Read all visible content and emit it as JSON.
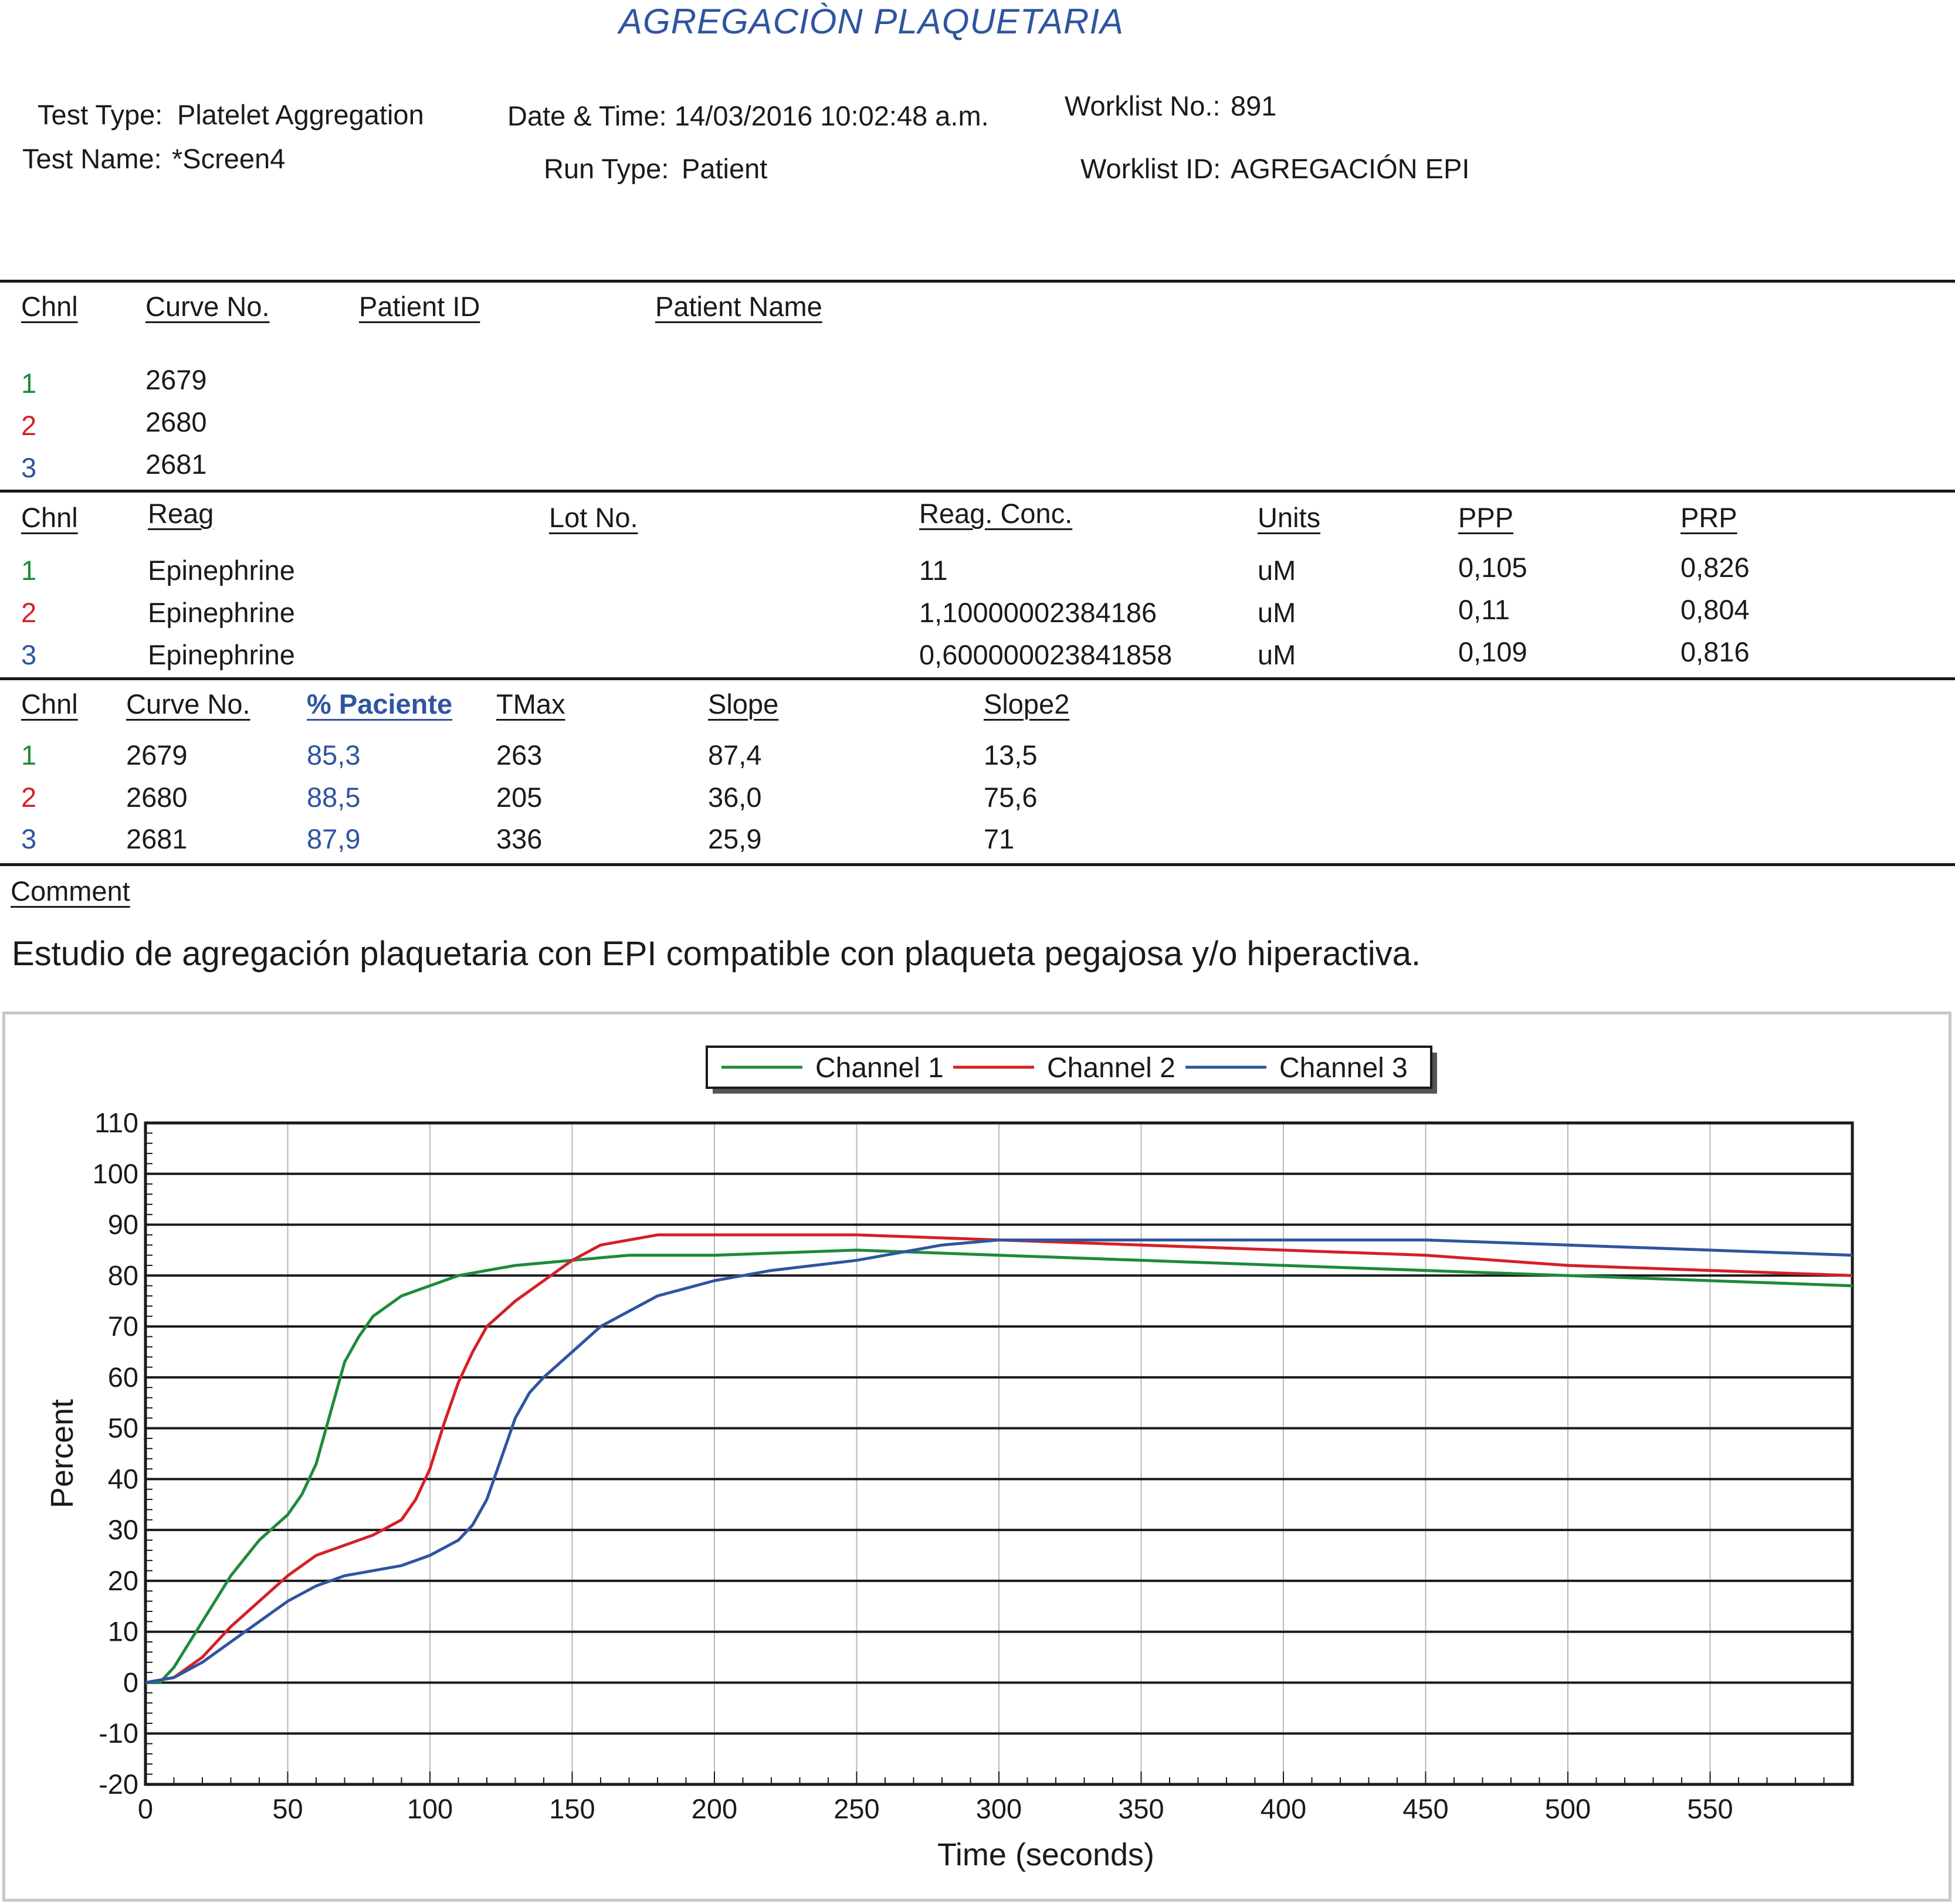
{
  "report": {
    "title": "AGREGACIÒN PLAQUETARIA",
    "test_type_label": "Test Type:",
    "test_type_value": "Platelet Aggregation",
    "test_name_label": "Test Name:",
    "test_name_value": "*Screen4",
    "datetime_label": "Date & Time:",
    "datetime_value": "14/03/2016 10:02:48 a.m.",
    "run_type_label": "Run Type:",
    "run_type_value": "Patient",
    "worklist_no_label": "Worklist No.:",
    "worklist_no_value": "891",
    "worklist_id_label": "Worklist ID:",
    "worklist_id_value": "AGREGACIÓN EPI"
  },
  "patients": {
    "headers": [
      "Chnl",
      "Curve No.",
      "Patient ID",
      "Patient Name"
    ],
    "rows": [
      {
        "chnl": "1",
        "curve": "2679"
      },
      {
        "chnl": "2",
        "curve": "2680"
      },
      {
        "chnl": "3",
        "curve": "2681"
      }
    ]
  },
  "reagents": {
    "headers": [
      "Chnl",
      "Reag",
      "Lot No.",
      "Reag. Conc.",
      "Units",
      "PPP",
      "PRP"
    ],
    "rows": [
      {
        "chnl": "1",
        "reag": "Epinephrine",
        "conc": "11",
        "units": "uM",
        "ppp": "0,105",
        "prp": "0,826"
      },
      {
        "chnl": "2",
        "reag": "Epinephrine",
        "conc": "1,10000002384186",
        "units": "uM",
        "ppp": "0,11",
        "prp": "0,804"
      },
      {
        "chnl": "3",
        "reag": "Epinephrine",
        "conc": "0,600000023841858",
        "units": "uM",
        "ppp": "0,109",
        "prp": "0,816"
      }
    ]
  },
  "results": {
    "headers": [
      "Chnl",
      "Curve No.",
      "% Paciente",
      "TMax",
      "Slope",
      "Slope2"
    ],
    "rows": [
      {
        "chnl": "1",
        "curve": "2679",
        "pct": "85,3",
        "tmax": "263",
        "slope": "87,4",
        "slope2": "13,5"
      },
      {
        "chnl": "2",
        "curve": "2680",
        "pct": "88,5",
        "tmax": "205",
        "slope": "36,0",
        "slope2": "75,6"
      },
      {
        "chnl": "3",
        "curve": "2681",
        "pct": "87,9",
        "tmax": "336",
        "slope": "25,9",
        "slope2": "71"
      }
    ]
  },
  "comment": {
    "label": "Comment",
    "text": "Estudio de agregación plaquetaria con EPI compatible con plaqueta pegajosa y/o hiperactiva."
  },
  "colors": {
    "channel_1": "#1f8a3a",
    "channel_2": "#d42027",
    "channel_3": "#2e55a0"
  },
  "chart_data": {
    "type": "line",
    "xlabel": "Time (seconds)",
    "ylabel": "Percent",
    "xlim": [
      0,
      600
    ],
    "ylim": [
      -20,
      110
    ],
    "x_ticks": [
      0,
      50,
      100,
      150,
      200,
      250,
      300,
      350,
      400,
      450,
      500,
      550
    ],
    "y_ticks": [
      -20,
      -10,
      0,
      10,
      20,
      30,
      40,
      50,
      60,
      70,
      80,
      90,
      100,
      110
    ],
    "grid": true,
    "legend_position": "top-center",
    "series": [
      {
        "name": "Channel 1",
        "color": "#1f8a3a",
        "x": [
          0,
          5,
          10,
          20,
          30,
          40,
          50,
          55,
          60,
          65,
          70,
          75,
          80,
          90,
          100,
          110,
          120,
          130,
          150,
          170,
          200,
          250,
          300,
          350,
          400,
          450,
          500,
          550,
          600
        ],
        "y": [
          0,
          0,
          3,
          12,
          21,
          28,
          33,
          37,
          43,
          53,
          63,
          68,
          72,
          76,
          78,
          80,
          81,
          82,
          83,
          84,
          84,
          85,
          84,
          83,
          82,
          81,
          80,
          79,
          78
        ]
      },
      {
        "name": "Channel 2",
        "color": "#d42027",
        "x": [
          0,
          10,
          20,
          30,
          40,
          50,
          60,
          70,
          80,
          90,
          95,
          100,
          105,
          110,
          115,
          120,
          130,
          140,
          150,
          160,
          170,
          180,
          200,
          250,
          300,
          350,
          400,
          450,
          500,
          550,
          600
        ],
        "y": [
          0,
          1,
          5,
          11,
          16,
          21,
          25,
          27,
          29,
          32,
          36,
          42,
          51,
          59,
          65,
          70,
          75,
          79,
          83,
          86,
          87,
          88,
          88,
          88,
          87,
          86,
          85,
          84,
          82,
          81,
          80
        ]
      },
      {
        "name": "Channel 3",
        "color": "#2e55a0",
        "x": [
          0,
          10,
          20,
          30,
          40,
          50,
          60,
          70,
          80,
          90,
          100,
          110,
          115,
          120,
          125,
          130,
          135,
          140,
          150,
          160,
          170,
          180,
          200,
          220,
          250,
          280,
          300,
          350,
          400,
          450,
          500,
          550,
          600
        ],
        "y": [
          0,
          1,
          4,
          8,
          12,
          16,
          19,
          21,
          22,
          23,
          25,
          28,
          31,
          36,
          44,
          52,
          57,
          60,
          65,
          70,
          73,
          76,
          79,
          81,
          83,
          86,
          87,
          87,
          87,
          87,
          86,
          85,
          84
        ]
      }
    ]
  }
}
